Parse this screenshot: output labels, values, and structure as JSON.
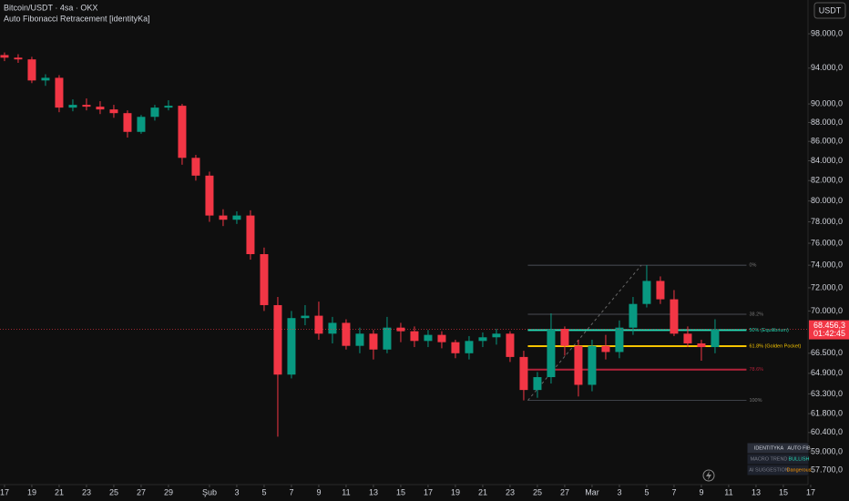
{
  "chart_data": {
    "type": "candlestick",
    "title": "Bitcoin/USDT · 4sa · OKX",
    "subtitle": "Auto Fibonacci Retracement [identityKa]",
    "currency": "USDT",
    "log_scale": true,
    "up_color": "#089981",
    "down_color": "#f23645",
    "xlim": [
      -0.33,
      58.67
    ],
    "xticks": [
      {
        "value": 0,
        "label": "17"
      },
      {
        "value": 2,
        "label": "19"
      },
      {
        "value": 4,
        "label": "21"
      },
      {
        "value": 6,
        "label": "23"
      },
      {
        "value": 8,
        "label": "25"
      },
      {
        "value": 10,
        "label": "27"
      },
      {
        "value": 12,
        "label": "29"
      },
      {
        "value": 15,
        "label": "Şub"
      },
      {
        "value": 17,
        "label": "3"
      },
      {
        "value": 19,
        "label": "5"
      },
      {
        "value": 21,
        "label": "7"
      },
      {
        "value": 23,
        "label": "9"
      },
      {
        "value": 25,
        "label": "11"
      },
      {
        "value": 27,
        "label": "13"
      },
      {
        "value": 29,
        "label": "15"
      },
      {
        "value": 31,
        "label": "17"
      },
      {
        "value": 33,
        "label": "19"
      },
      {
        "value": 35,
        "label": "21"
      },
      {
        "value": 37,
        "label": "23"
      },
      {
        "value": 39,
        "label": "25"
      },
      {
        "value": 41,
        "label": "27"
      },
      {
        "value": 43,
        "label": "Mar"
      },
      {
        "value": 45,
        "label": "3"
      },
      {
        "value": 47,
        "label": "5"
      },
      {
        "value": 49,
        "label": "7"
      },
      {
        "value": 51,
        "label": "9"
      },
      {
        "value": 53,
        "label": "11"
      },
      {
        "value": 55,
        "label": "13"
      },
      {
        "value": 57,
        "label": "15"
      },
      {
        "value": 59,
        "label": "17"
      }
    ],
    "ylim": [
      56700,
      102100
    ],
    "yticks": [
      {
        "value": 98000,
        "label": "98.000,0"
      },
      {
        "value": 94000,
        "label": "94.000,0"
      },
      {
        "value": 90000,
        "label": "90.000,0"
      },
      {
        "value": 88000,
        "label": "88.000,0"
      },
      {
        "value": 86000,
        "label": "86.000,0"
      },
      {
        "value": 84000,
        "label": "84.000,0"
      },
      {
        "value": 82000,
        "label": "82.000,0"
      },
      {
        "value": 80000,
        "label": "80.000,0"
      },
      {
        "value": 78000,
        "label": "78.000,0"
      },
      {
        "value": 76000,
        "label": "76.000,0"
      },
      {
        "value": 74000,
        "label": "74.000,0"
      },
      {
        "value": 72000,
        "label": "72.000,0"
      },
      {
        "value": 70000,
        "label": "70.000,0"
      },
      {
        "value": 66500,
        "label": "66.500,0"
      },
      {
        "value": 64900,
        "label": "64.900,0"
      },
      {
        "value": 63300,
        "label": "63.300,0"
      },
      {
        "value": 61800,
        "label": "61.800,0"
      },
      {
        "value": 60400,
        "label": "60.400,0"
      },
      {
        "value": 59000,
        "label": "59.000,0"
      },
      {
        "value": 57700,
        "label": "57.700,0"
      }
    ],
    "x": [
      0,
      1,
      2,
      3,
      4,
      5,
      6,
      7,
      8,
      9,
      10,
      11,
      12,
      13,
      14,
      15,
      16,
      17,
      18,
      19,
      20,
      21,
      22,
      23,
      24,
      25,
      26,
      27,
      28,
      29,
      30,
      31,
      32,
      33,
      34,
      35,
      36,
      37,
      38,
      39,
      40,
      41,
      42,
      43,
      44,
      45,
      46,
      47,
      48,
      49,
      50,
      51,
      52
    ],
    "open": [
      95500,
      95200,
      95000,
      92600,
      92900,
      89600,
      89900,
      89700,
      89400,
      89000,
      87000,
      88600,
      89600,
      89800,
      84300,
      82500,
      78600,
      78200,
      78600,
      75000,
      70500,
      64800,
      69400,
      69600,
      68100,
      69000,
      67100,
      68100,
      66800,
      68600,
      68300,
      67500,
      68000,
      67400,
      66500,
      67500,
      67800,
      68100,
      66200,
      63600,
      64600,
      68500,
      67100,
      64000,
      67100,
      66600,
      68600,
      70600,
      72600,
      71000,
      68100,
      67300,
      67000
    ],
    "high": [
      95800,
      95600,
      95300,
      93300,
      93200,
      90500,
      90600,
      90300,
      89900,
      89300,
      88800,
      89900,
      90400,
      90000,
      84600,
      82900,
      79200,
      79000,
      79100,
      75600,
      71200,
      70000,
      70500,
      70800,
      69500,
      69300,
      68600,
      68400,
      69500,
      69000,
      68700,
      68400,
      68300,
      67600,
      67900,
      68200,
      68500,
      68300,
      66700,
      65000,
      69800,
      68700,
      67600,
      67600,
      68000,
      69200,
      71200,
      74000,
      73000,
      71800,
      68700,
      67600,
      69300
    ],
    "low": [
      94800,
      94600,
      92300,
      92000,
      89100,
      89200,
      89300,
      88900,
      88500,
      86400,
      86800,
      88200,
      89300,
      83600,
      82000,
      78000,
      77600,
      77800,
      74500,
      70000,
      60100,
      64500,
      68800,
      67600,
      67300,
      66800,
      66500,
      66000,
      66500,
      67400,
      67000,
      67000,
      66900,
      66100,
      66000,
      67000,
      67200,
      65800,
      62800,
      63000,
      64100,
      66300,
      63100,
      63500,
      66000,
      66100,
      68000,
      70300,
      70600,
      67900,
      67000,
      65900,
      66500
    ],
    "close": [
      95200,
      95000,
      92600,
      92900,
      89600,
      89900,
      89700,
      89400,
      89000,
      87000,
      88600,
      89600,
      89800,
      84300,
      82500,
      78600,
      78200,
      78600,
      75000,
      70500,
      64800,
      69400,
      69600,
      68100,
      69000,
      67100,
      68100,
      66800,
      68600,
      68300,
      67500,
      68000,
      67400,
      66500,
      67500,
      67800,
      68100,
      66200,
      63600,
      64600,
      68500,
      67100,
      64000,
      67100,
      66600,
      68600,
      70600,
      72600,
      71000,
      68100,
      67300,
      67000,
      68456.3
    ],
    "last_price": {
      "value": 68456.3,
      "label": "68.456,3"
    },
    "countdown": "01:42:45",
    "fib": {
      "xrange": [
        38.3,
        54.3
      ],
      "swing_x": [
        38.3,
        46.6
      ],
      "levels": [
        {
          "label": "0%",
          "value": 74000,
          "color": "#5d606b"
        },
        {
          "label": "38.2%",
          "value": 69722,
          "color": "#5d606b"
        },
        {
          "label": "50% (Equilibrium)",
          "value": 68400,
          "color": "#26d9b4"
        },
        {
          "label": "61.8% (Golden Pocket)",
          "value": 67078,
          "color": "#f5c400"
        },
        {
          "label": "78.6%",
          "value": 65197,
          "color": "#b2223a"
        },
        {
          "label": "100%",
          "value": 62800,
          "color": "#5d606b"
        }
      ]
    },
    "table": {
      "rows": [
        [
          "IDENTITYKA",
          "AUTO FIB"
        ],
        [
          "MACRO TREND",
          "BULLISH"
        ],
        [
          "AI SUGGESTION",
          "Dangerous"
        ]
      ]
    }
  }
}
